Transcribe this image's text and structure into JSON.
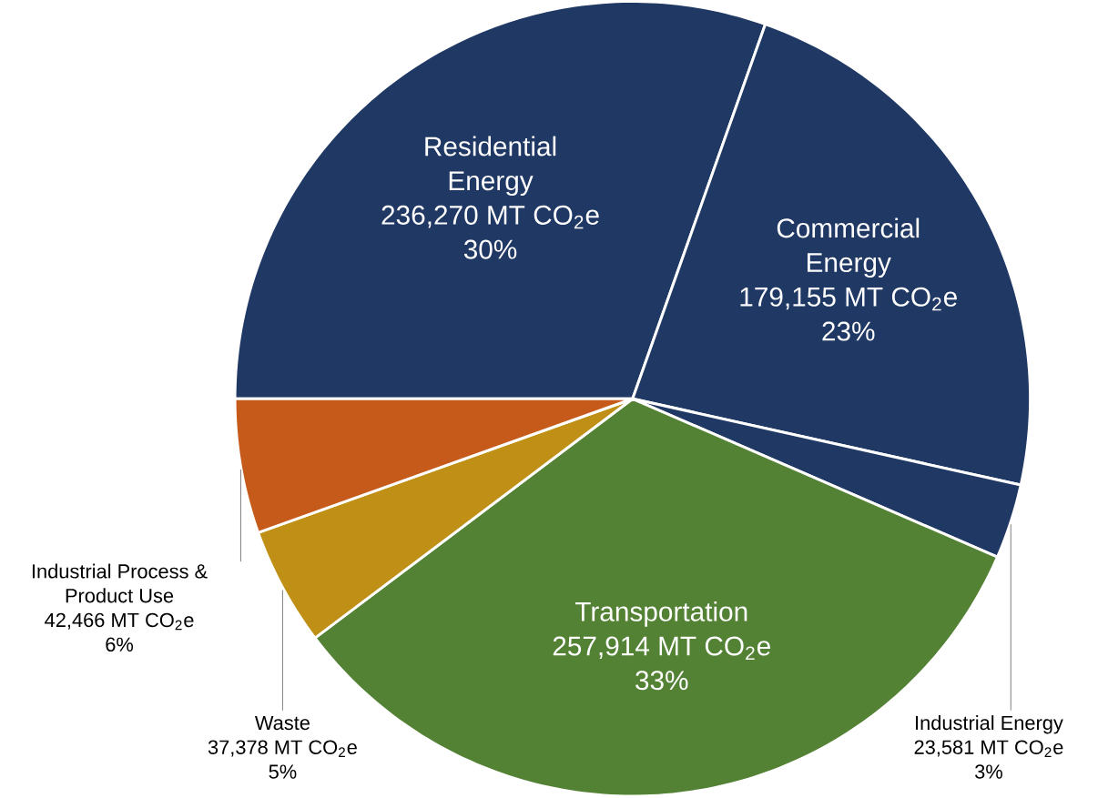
{
  "chart_data": {
    "type": "pie",
    "categories": [
      "Residential Energy",
      "Commercial Energy",
      "Industrial Energy",
      "Transportation",
      "Waste",
      "Industrial Process & Product Use"
    ],
    "values": [
      236270,
      179155,
      23581,
      257914,
      37378,
      42466
    ],
    "colors": [
      "#203864",
      "#203864",
      "#203864",
      "#548235",
      "#bf9015",
      "#c55a1a"
    ],
    "value_labels": [
      "236,270 MT CO$_{2}$e",
      "179,155 MT CO$_{2}$e",
      "23,581 MT CO$_{2}$e",
      "257,914 MT CO$_{2}$e",
      "37,378 MT CO$_{2}$e",
      "42,466 MT CO$_{2}$e"
    ],
    "annotations": [
      "30%",
      "23%",
      "3%",
      "33%",
      "5%",
      "6%"
    ]
  }
}
